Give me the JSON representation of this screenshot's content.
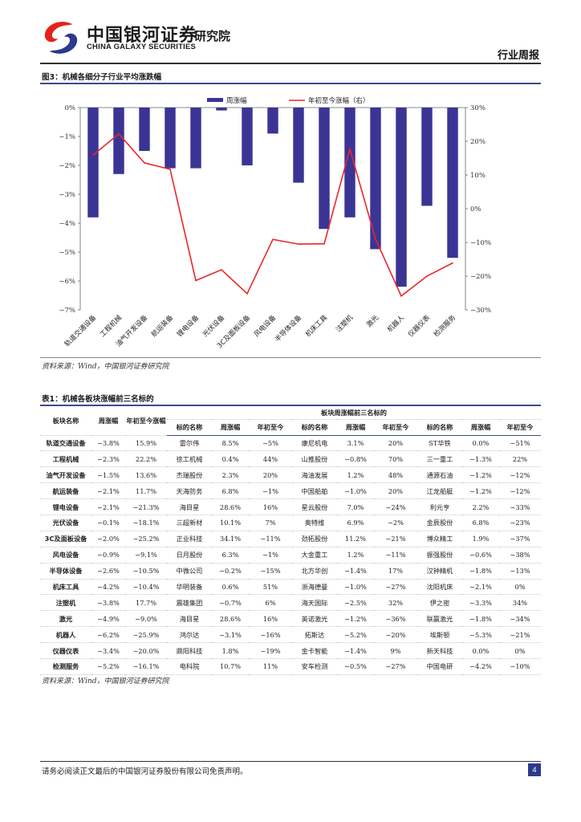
{
  "header": {
    "brand_cn": "中国银河证券",
    "brand_en": "CHINA GALAXY SECURITIES",
    "institute": "研究院",
    "report_type": "行业周报",
    "brand_colors": {
      "red": "#e2231a",
      "blue": "#2b3a8c"
    }
  },
  "figure": {
    "title": "图3：机械各细分子行业平均涨跌幅",
    "source": "资料来源：Wind，中国银河证券研究院"
  },
  "chart_data": {
    "type": "bar",
    "categories": [
      "轨道交通设备",
      "工程机械",
      "油气开发设备",
      "航运装备",
      "锂电设备",
      "光伏设备",
      "3C及面板设备",
      "风电设备",
      "半导体设备",
      "机床工具",
      "注塑机",
      "激光",
      "机器人",
      "仪器仪表",
      "检测服务"
    ],
    "series": [
      {
        "name": "周涨幅",
        "type": "bar",
        "axis": "left",
        "color": "#3a3595",
        "values": [
          -3.8,
          -2.3,
          -1.5,
          -2.1,
          -2.1,
          -0.1,
          -2.0,
          -0.9,
          -2.6,
          -4.2,
          -3.8,
          -4.9,
          -6.2,
          -3.4,
          -5.2
        ]
      },
      {
        "name": "年初至今涨幅（右）",
        "type": "line",
        "axis": "right",
        "color": "#e8262b",
        "values": [
          15.9,
          22.2,
          13.6,
          11.7,
          -21.3,
          -18.1,
          -25.2,
          -9.1,
          -10.5,
          -10.4,
          17.7,
          -9.0,
          -25.9,
          -20.0,
          -16.1
        ]
      }
    ],
    "y_left": {
      "min": -7,
      "max": 0,
      "ticks": [
        "0%",
        "−1%",
        "−2%",
        "−3%",
        "−4%",
        "−5%",
        "−6%",
        "−7%"
      ]
    },
    "y_right": {
      "min": -30,
      "max": 30,
      "ticks": [
        "30%",
        "20%",
        "10%",
        "0%",
        "−10%",
        "−20%",
        "−30%"
      ]
    },
    "legend_position": "top",
    "grid": false
  },
  "table": {
    "title": "表1：机械各板块涨幅前三名标的",
    "header_group": "板块周涨幅前三名标的",
    "headers": [
      "板块名称",
      "周涨幅",
      "年初至今涨幅",
      "标的名称",
      "周涨幅",
      "年初至今",
      "标的名称",
      "周涨幅",
      "年初至今",
      "标的名称",
      "周涨幅",
      "年初至今"
    ],
    "rows": [
      [
        "轨道交通设备",
        "−3.8%",
        "15.9%",
        "雷尔伟",
        "8.5%",
        "−5%",
        "康尼机电",
        "3.1%",
        "20%",
        "ST华铁",
        "0.0%",
        "−51%"
      ],
      [
        "工程机械",
        "−2.3%",
        "22.2%",
        "徐工机械",
        "0.4%",
        "44%",
        "山推股份",
        "−0.8%",
        "70%",
        "三一重工",
        "−1.3%",
        "22%"
      ],
      [
        "油气开发设备",
        "−1.5%",
        "13.6%",
        "杰瑞股份",
        "2.3%",
        "20%",
        "海油发展",
        "1.2%",
        "48%",
        "通源石油",
        "−1.2%",
        "−12%"
      ],
      [
        "航运装备",
        "−2.1%",
        "11.7%",
        "天海防务",
        "6.8%",
        "−1%",
        "中国船舶",
        "−1.0%",
        "20%",
        "江龙船艇",
        "−1.2%",
        "−12%"
      ],
      [
        "锂电设备",
        "−2.1%",
        "−21.3%",
        "海目星",
        "28.6%",
        "16%",
        "星云股份",
        "7.0%",
        "−24%",
        "利元亨",
        "2.2%",
        "−33%"
      ],
      [
        "光伏设备",
        "−0.1%",
        "−18.1%",
        "三超新材",
        "10.1%",
        "7%",
        "奥特维",
        "6.9%",
        "−2%",
        "金辰股份",
        "6.8%",
        "−23%"
      ],
      [
        "3C及面板设备",
        "−2.0%",
        "−25.2%",
        "正业科技",
        "34.1%",
        "−11%",
        "劲拓股份",
        "11.2%",
        "−21%",
        "博众精工",
        "1.9%",
        "−37%"
      ],
      [
        "风电设备",
        "−0.9%",
        "−9.1%",
        "日月股份",
        "6.3%",
        "−1%",
        "大金重工",
        "1.2%",
        "−11%",
        "振强股份",
        "−0.6%",
        "−38%"
      ],
      [
        "半导体设备",
        "−2.6%",
        "−10.5%",
        "中微公司",
        "−0.2%",
        "−15%",
        "北方华创",
        "−1.4%",
        "17%",
        "汉钟精机",
        "−1.8%",
        "−13%"
      ],
      [
        "机床工具",
        "−4.2%",
        "−10.4%",
        "华明装备",
        "0.6%",
        "51%",
        "浙海德曼",
        "−1.0%",
        "−27%",
        "沈阳机床",
        "−2.1%",
        "0%"
      ],
      [
        "注塑机",
        "−3.8%",
        "17.7%",
        "震雄集团",
        "−0.7%",
        "6%",
        "海天国际",
        "−2.5%",
        "32%",
        "伊之密",
        "−3.3%",
        "34%"
      ],
      [
        "激光",
        "−4.9%",
        "−9.0%",
        "海目星",
        "28.6%",
        "16%",
        "英诺激光",
        "−1.2%",
        "−36%",
        "联赢激光",
        "−1.8%",
        "−34%"
      ],
      [
        "机器人",
        "−6.2%",
        "−25.9%",
        "鸿尔达",
        "−3.1%",
        "−16%",
        "拓斯达",
        "−5.2%",
        "−20%",
        "埃斯顿",
        "−5.3%",
        "−21%"
      ],
      [
        "仪器仪表",
        "−3.4%",
        "−20.0%",
        "鼎阳科技",
        "1.8%",
        "−19%",
        "金卡智能",
        "−1.4%",
        "9%",
        "新天科技",
        "0.0%",
        "0%"
      ],
      [
        "检测服务",
        "−5.2%",
        "−16.1%",
        "电科院",
        "10.7%",
        "11%",
        "安车检测",
        "−0.5%",
        "−27%",
        "中国电研",
        "−4.2%",
        "−10%"
      ]
    ],
    "source": "资料来源：Wind，中国银河证券研究院"
  },
  "footer": {
    "disclaimer": "请务必阅读正文最后的中国银河证券股份有限公司免责声明。",
    "page": "4"
  }
}
